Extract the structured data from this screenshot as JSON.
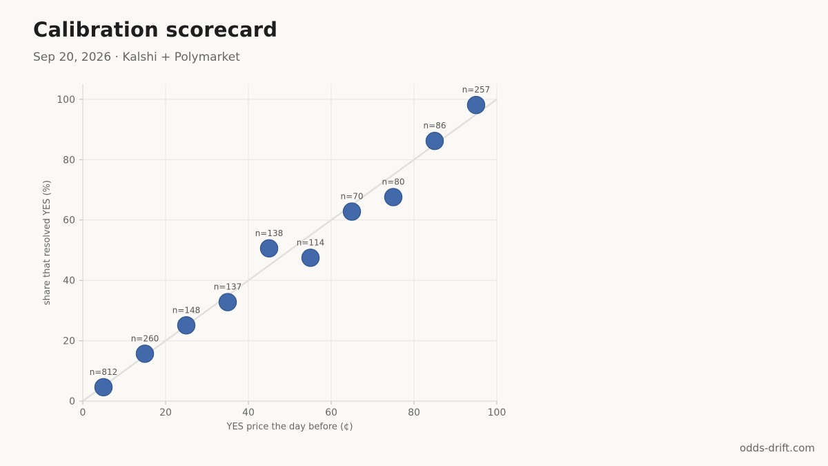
{
  "header": {
    "title": "Calibration scorecard",
    "subtitle": "Sep 20, 2026 · Kalshi + Polymarket"
  },
  "footer": {
    "source": "odds-drift.com"
  },
  "colors": {
    "background": "#faf9f6",
    "point_fill": "#3b64a6",
    "point_stroke": "#2f5592",
    "reference_line": "#e2e0dc",
    "grid": "#e6e5e2"
  },
  "chart_data": {
    "type": "scatter",
    "xlabel": "YES price the day before (¢)",
    "ylabel": "share that resolved YES (%)",
    "xlim": [
      0,
      100
    ],
    "ylim": [
      0,
      105
    ],
    "x_ticks": [
      0,
      20,
      40,
      60,
      80,
      100
    ],
    "y_ticks": [
      0,
      20,
      40,
      60,
      80,
      100
    ],
    "grid": true,
    "reference_line": "y = x",
    "series": [
      {
        "points": [
          {
            "x": 5,
            "y": 4.6,
            "label": "n=812"
          },
          {
            "x": 15,
            "y": 15.7,
            "label": "n=260"
          },
          {
            "x": 25,
            "y": 25.1,
            "label": "n=148"
          },
          {
            "x": 35,
            "y": 32.8,
            "label": "n=137"
          },
          {
            "x": 45,
            "y": 50.6,
            "label": "n=138"
          },
          {
            "x": 55,
            "y": 47.5,
            "label": "n=114"
          },
          {
            "x": 65,
            "y": 62.8,
            "label": "n=70"
          },
          {
            "x": 75,
            "y": 67.6,
            "label": "n=80"
          },
          {
            "x": 85,
            "y": 86.2,
            "label": "n=86"
          },
          {
            "x": 95,
            "y": 98.1,
            "label": "n=257"
          }
        ]
      }
    ]
  }
}
